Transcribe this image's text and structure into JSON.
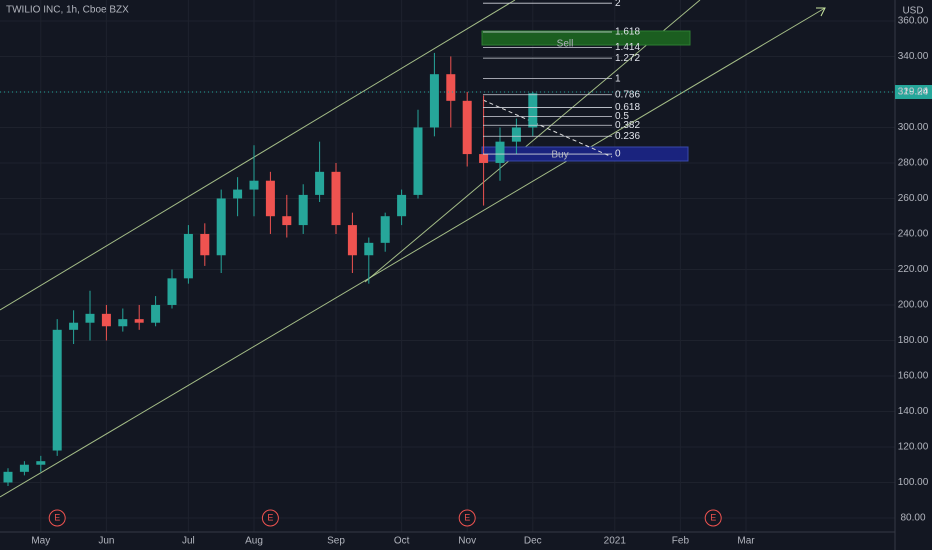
{
  "chart_data": {
    "type": "candlestick",
    "title": "TWILIO INC, 1h, Cboe BZX",
    "currency": "USD",
    "categories": [
      null,
      null,
      "May",
      null,
      null,
      null,
      "Jun",
      null,
      null,
      null,
      null,
      "Jul",
      null,
      null,
      null,
      "Aug",
      null,
      null,
      null,
      null,
      "Sep",
      null,
      null,
      null,
      "Oct",
      null,
      null,
      null,
      "Nov",
      null,
      null,
      null,
      "Dec",
      null,
      null,
      null,
      null,
      "2021",
      null,
      null,
      null,
      "Feb",
      null,
      null,
      null,
      "Mar",
      null,
      null,
      null,
      null,
      null,
      null,
      null,
      null
    ],
    "open": [
      100,
      106,
      110,
      118,
      186,
      190,
      195,
      188,
      192,
      190,
      200,
      215,
      240,
      228,
      260,
      265,
      270,
      250,
      245,
      262,
      275,
      245,
      228,
      235,
      250,
      262,
      300,
      330,
      315,
      285,
      280,
      292,
      300,
      null,
      null,
      null,
      null,
      null,
      null,
      null,
      null,
      null,
      null,
      null,
      null,
      null,
      null,
      null,
      null,
      null,
      null,
      null,
      null,
      null
    ],
    "high": [
      108,
      112,
      115,
      192,
      197,
      208,
      200,
      198,
      200,
      205,
      220,
      245,
      246,
      265,
      272,
      290,
      275,
      262,
      268,
      292,
      280,
      252,
      238,
      252,
      265,
      310,
      342,
      340,
      320,
      318,
      300,
      305,
      320,
      null,
      null,
      null,
      null,
      null,
      null,
      null,
      null,
      null,
      null,
      null,
      null,
      null,
      null,
      null,
      null,
      null,
      null,
      null,
      null,
      null
    ],
    "low": [
      98,
      104,
      106,
      115,
      178,
      180,
      180,
      185,
      186,
      188,
      198,
      212,
      222,
      218,
      250,
      250,
      240,
      238,
      240,
      258,
      240,
      218,
      212,
      230,
      245,
      260,
      295,
      300,
      278,
      256,
      270,
      285,
      295,
      null,
      null,
      null,
      null,
      null,
      null,
      null,
      null,
      null,
      null,
      null,
      null,
      null,
      null,
      null,
      null,
      null,
      null,
      null,
      null,
      null
    ],
    "close": [
      106,
      110,
      112,
      186,
      190,
      195,
      188,
      192,
      190,
      200,
      215,
      240,
      228,
      260,
      265,
      270,
      250,
      245,
      262,
      275,
      245,
      228,
      235,
      250,
      262,
      300,
      330,
      315,
      285,
      280,
      292,
      300,
      319.24,
      null,
      null,
      null,
      null,
      null,
      null,
      null,
      null,
      null,
      null,
      null,
      null,
      null,
      null,
      null,
      null,
      null,
      null,
      null,
      null,
      null
    ],
    "up_color": "#26a69a",
    "down_color": "#ef5350",
    "ylim": [
      72.1,
      371.8
    ],
    "yticks": [
      {
        "value": 80,
        "label": "80.00"
      },
      {
        "value": 100,
        "label": "100.00"
      },
      {
        "value": 120,
        "label": "120.00"
      },
      {
        "value": 140,
        "label": "140.00"
      },
      {
        "value": 160,
        "label": "160.00"
      },
      {
        "value": 180,
        "label": "180.00"
      },
      {
        "value": 200,
        "label": "200.00"
      },
      {
        "value": 220,
        "label": "220.00"
      },
      {
        "value": 240,
        "label": "240.00"
      },
      {
        "value": 260,
        "label": "260.00"
      },
      {
        "value": 280,
        "label": "280.00"
      },
      {
        "value": 300,
        "label": "300.00"
      },
      {
        "value": 320,
        "label": "320.00"
      },
      {
        "value": 340,
        "label": "340.00"
      },
      {
        "value": 360,
        "label": "360.00"
      }
    ],
    "grid": true,
    "fib": {
      "start": 285,
      "end": 327.5,
      "levels": [
        0,
        0.236,
        0.382,
        0.5,
        0.618,
        0.786,
        1,
        1.272,
        1.414,
        1.618,
        2
      ]
    },
    "sell_label": "Sell",
    "buy_label": "Buy",
    "earnings": [
      "E",
      "E",
      "E",
      "E"
    ]
  }
}
